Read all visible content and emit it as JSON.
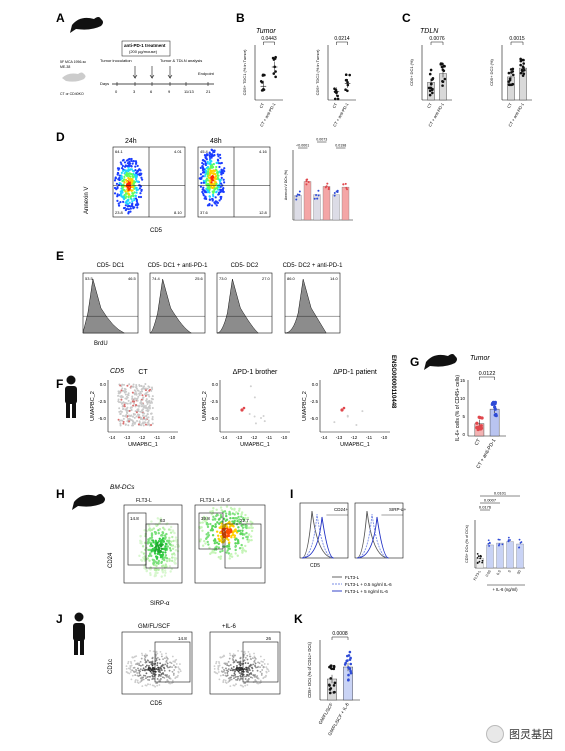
{
  "panels": {
    "A": {
      "letter": "A",
      "treatment": "anti-PD-1 treatment",
      "dose": "(200 µg/mouse)",
      "tumor_inoculation": "Tumor inoculation",
      "tumor_tdln": "Tumor & TDLN analysis",
      "endpoint": "Endpoint",
      "days_label": "Days",
      "days": [
        "0",
        "3",
        "6",
        "9",
        "11/13",
        "21"
      ],
      "mouse_text1": "5F MCA 1956-sc",
      "mouse_text2": "ME-38",
      "mouse_text3": "CT or CD40KO"
    },
    "B": {
      "letter": "B",
      "title": "Tumor",
      "p1": "0.0443",
      "p2": "0.0214",
      "ylabel1": "CD5+ TDC1 (% in Tumor)",
      "ylabel2": "CD5+ TDC2 (% in Tumor)",
      "groups": [
        "CT",
        "CT + anti-PD-1"
      ]
    },
    "C": {
      "letter": "C",
      "title": "TDLN",
      "p1": "0.0076",
      "p2": "0.0015",
      "ylabel1": "CD5+ DC1 (%)",
      "ylabel2": "CD5+ DC2 (%)",
      "groups": [
        "CT",
        "CT + anti-PD-1"
      ]
    },
    "D": {
      "letter": "D",
      "t1": "24h",
      "t2": "48h",
      "yaxis": "Annexin V",
      "xaxis": "CD5",
      "q24": [
        "64.1",
        "4.01",
        "23.8",
        "8.10"
      ],
      "q48": [
        "45.4",
        "4.16",
        "37.6",
        "12.8"
      ],
      "pvals": [
        "<0.0001",
        "0.0073",
        "0.0198"
      ],
      "bar_ylabel": "Annexin V DCs (%)"
    },
    "E": {
      "letter": "E",
      "titles": [
        "CD5- DC1",
        "CD5- DC1 + anti-PD-1",
        "CD5- DC2",
        "CD5- DC2 + anti-PD-1"
      ],
      "left": [
        "53.5",
        "74.4",
        "73.0",
        "86.0"
      ],
      "right": [
        "46.5",
        "25.6",
        "27.0",
        "14.0"
      ],
      "xaxis": "BrdU"
    },
    "F": {
      "letter": "F",
      "gene": "CD5",
      "titles": [
        "CT",
        "ΔPD-1 brother",
        "ΔPD-1 patient"
      ],
      "xaxis": "UMAPBC_1",
      "yaxis": "UMAPBC_2",
      "xticks": [
        "-14",
        "-13",
        "-12",
        "-11",
        "-10"
      ],
      "yticks": [
        "0.0",
        "-2.5",
        "-5.0"
      ],
      "ensembl": "ENSG00000110448"
    },
    "G": {
      "letter": "G",
      "title": "Tumor",
      "p": "0.0122",
      "ylabel": "IL-6+ cells (% of CD45+ cells)",
      "groups": [
        "CT",
        "CT + anti-PD-1"
      ],
      "yticks": [
        "0",
        "5",
        "10",
        "15"
      ]
    },
    "H": {
      "letter": "H",
      "title": "BM-DCs",
      "c1": "FLT3-L",
      "c2": "FLT3-L + IL-6",
      "v1": [
        "14.8",
        "63"
      ],
      "v2": [
        "39.8",
        "22.7"
      ],
      "yaxis": "CD24",
      "xaxis": "SIRP-α"
    },
    "I": {
      "letter": "I",
      "h1": "CD24+",
      "h2": "SIRP-α+",
      "xaxis": "CD5",
      "legend": [
        "FLT3-L",
        "FLT3-L + 0.5 ng/ml IL-6",
        "FLT3-L + 5 ng/ml IL-6"
      ],
      "pvals": [
        "0.0101",
        "0.0007",
        "0.0176"
      ],
      "ylabel": "CD5+ DCs (% of DCs)",
      "xgroups": [
        "FLT3-L",
        "0.05",
        "0.5",
        "5",
        "50"
      ],
      "xtitle": "+ IL-6 (ng/ml)"
    },
    "J": {
      "letter": "J",
      "c1": "GM/FL/SCF",
      "c2": "+IL-6",
      "v1": "14.8",
      "v2": "26",
      "yaxis": "CD1c",
      "xaxis": "CD5"
    },
    "K": {
      "letter": "K",
      "p": "0.0008",
      "ylabel": "CD5+ DCs (% of CD1c+ DCs)",
      "groups": [
        "GM/FL/SCF",
        "GM/FL/SCF + IL-6"
      ]
    }
  },
  "watermark": "图灵基因",
  "colors": {
    "red": "#e0474c",
    "blue": "#2f4bd6",
    "bar": "#d9d9d9",
    "pink": "#f4a6a6"
  }
}
